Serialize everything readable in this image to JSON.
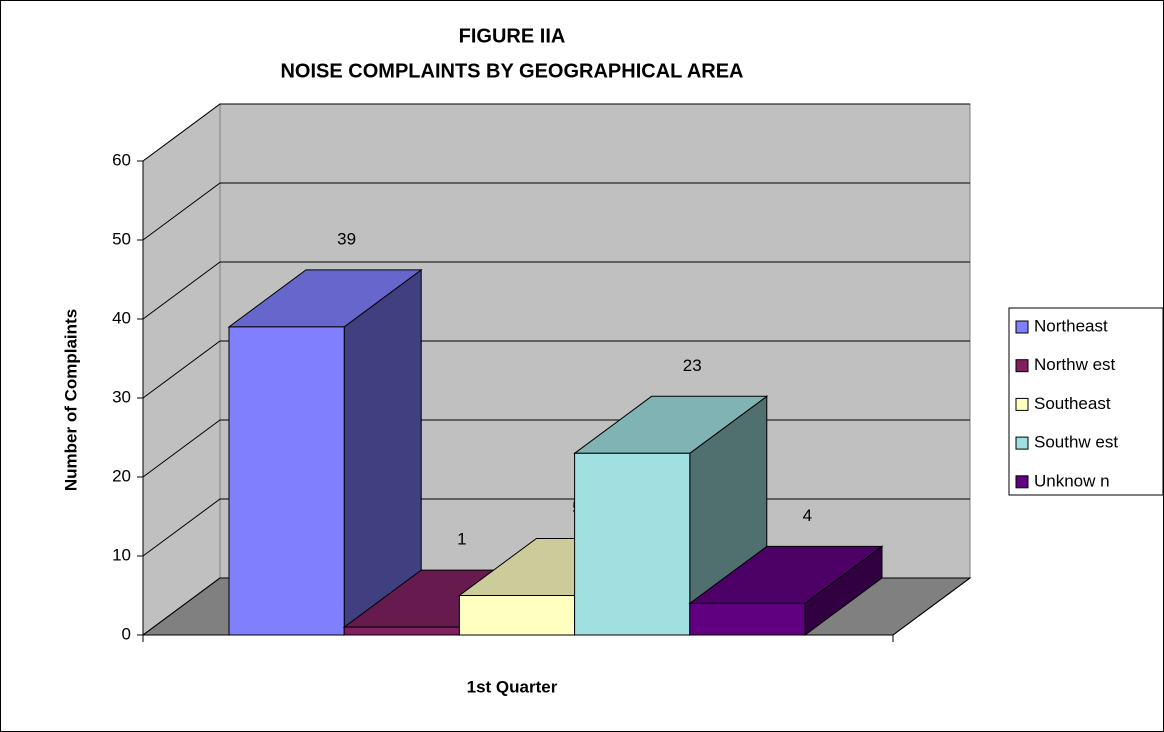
{
  "chart_data": {
    "type": "bar3d",
    "title": "FIGURE IIA",
    "subtitle": "NOISE COMPLAINTS BY GEOGRAPHICAL AREA",
    "y_label": "Number of Complaints",
    "x_label": "1st Quarter",
    "categories": [
      null
    ],
    "series": [
      {
        "name": "Northeast",
        "color": "#8080ff",
        "values": [
          39
        ]
      },
      {
        "name": "Northw est",
        "color": "#802060",
        "values": [
          1
        ]
      },
      {
        "name": "Southeast",
        "color": "#ffffc0",
        "values": [
          5
        ]
      },
      {
        "name": "Southw est",
        "color": "#a0e0e0",
        "values": [
          23
        ]
      },
      {
        "name": "Unknow n",
        "color": "#600080",
        "values": [
          4
        ]
      }
    ],
    "ylim": [
      0,
      60
    ],
    "yticks": [
      0,
      10,
      20,
      30,
      40,
      50,
      60
    ],
    "grid": true,
    "legend": "right"
  }
}
